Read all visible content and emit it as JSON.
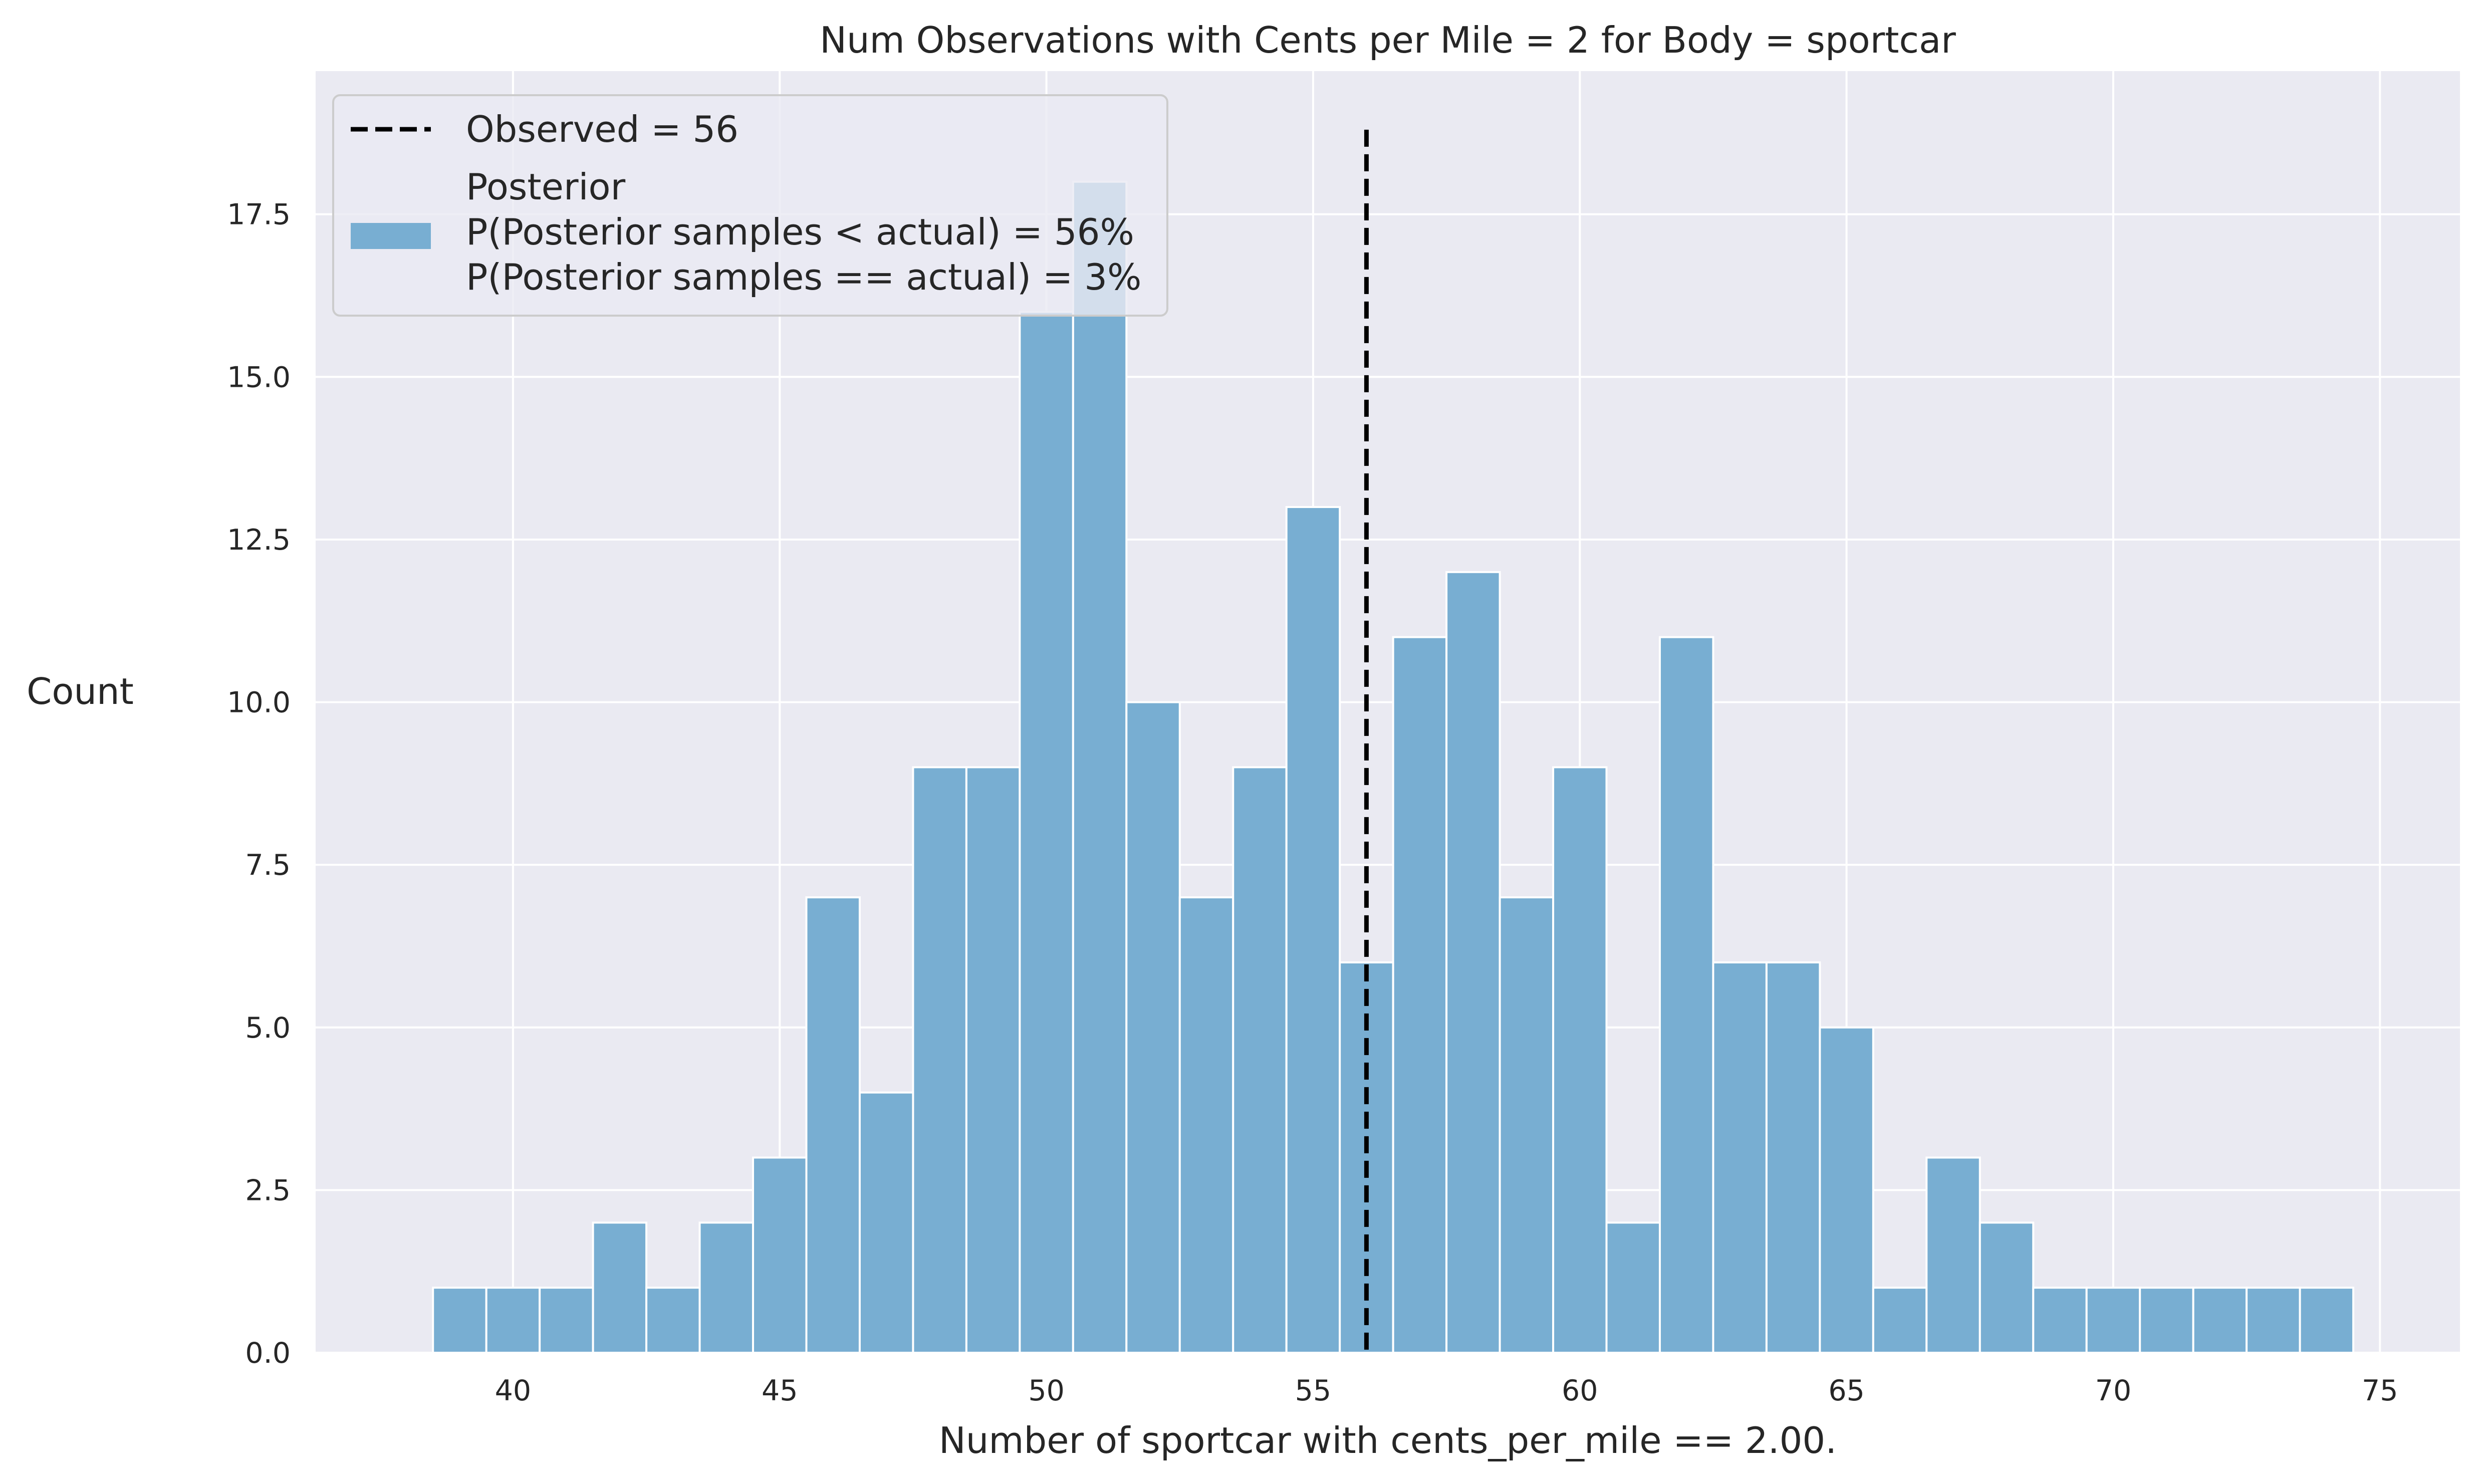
{
  "chart_data": {
    "type": "bar",
    "title": "Num Observations with Cents per Mile = 2 for Body = sportcar",
    "xlabel": "Number of sportcar with cents_per_mile == 2.00.",
    "ylabel": "Count",
    "xlim": [
      36.3,
      76.5
    ],
    "ylim": [
      0,
      19.7
    ],
    "x_ticks": [
      40,
      45,
      50,
      55,
      60,
      65,
      70,
      75
    ],
    "x_tick_labels": [
      "40",
      "45",
      "50",
      "55",
      "60",
      "65",
      "70",
      "75"
    ],
    "y_ticks": [
      0,
      2.5,
      5,
      7.5,
      10,
      12.5,
      15,
      17.5
    ],
    "y_tick_labels": [
      "0.0",
      "2.5",
      "5.0",
      "7.5",
      "10.0",
      "12.5",
      "15.0",
      "17.5"
    ],
    "bin_width": 1,
    "bin_edges_start": 38.5,
    "bins": [
      {
        "x": 39,
        "count": 1
      },
      {
        "x": 40,
        "count": 1
      },
      {
        "x": 41,
        "count": 1
      },
      {
        "x": 42,
        "count": 2
      },
      {
        "x": 43,
        "count": 1
      },
      {
        "x": 44,
        "count": 2
      },
      {
        "x": 45,
        "count": 3
      },
      {
        "x": 46,
        "count": 7
      },
      {
        "x": 47,
        "count": 4
      },
      {
        "x": 48,
        "count": 9
      },
      {
        "x": 49,
        "count": 9
      },
      {
        "x": 50,
        "count": 16
      },
      {
        "x": 51,
        "count": 18
      },
      {
        "x": 52,
        "count": 10
      },
      {
        "x": 53,
        "count": 7
      },
      {
        "x": 54,
        "count": 9
      },
      {
        "x": 55,
        "count": 13
      },
      {
        "x": 56,
        "count": 6
      },
      {
        "x": 57,
        "count": 11
      },
      {
        "x": 58,
        "count": 12
      },
      {
        "x": 59,
        "count": 7
      },
      {
        "x": 60,
        "count": 9
      },
      {
        "x": 61,
        "count": 2
      },
      {
        "x": 62,
        "count": 11
      },
      {
        "x": 63,
        "count": 6
      },
      {
        "x": 64,
        "count": 6
      },
      {
        "x": 65,
        "count": 5
      },
      {
        "x": 66,
        "count": 1
      },
      {
        "x": 67,
        "count": 3
      },
      {
        "x": 68,
        "count": 2
      },
      {
        "x": 69,
        "count": 1
      },
      {
        "x": 70,
        "count": 1
      },
      {
        "x": 71,
        "count": 1
      },
      {
        "x": 72,
        "count": 1
      },
      {
        "x": 73,
        "count": 1
      },
      {
        "x": 74,
        "count": 1
      }
    ],
    "observed": {
      "x": 56,
      "y_top": 18.8,
      "style": "dashed",
      "color": "#000000"
    },
    "legend": {
      "placement": "top-left",
      "entries": [
        {
          "kind": "line",
          "label": "Observed = 56"
        },
        {
          "kind": "patch",
          "label_lines": [
            "Posterior",
            "P(Posterior samples < actual) = 56%",
            "P(Posterior samples == actual) = 3%"
          ]
        }
      ]
    },
    "grid": true,
    "colors": {
      "background": "#eaeaf2",
      "grid": "#ffffff",
      "bar_fill": "#78aed2",
      "bar_edge": "#ffffff",
      "observed_line": "#000000"
    }
  }
}
